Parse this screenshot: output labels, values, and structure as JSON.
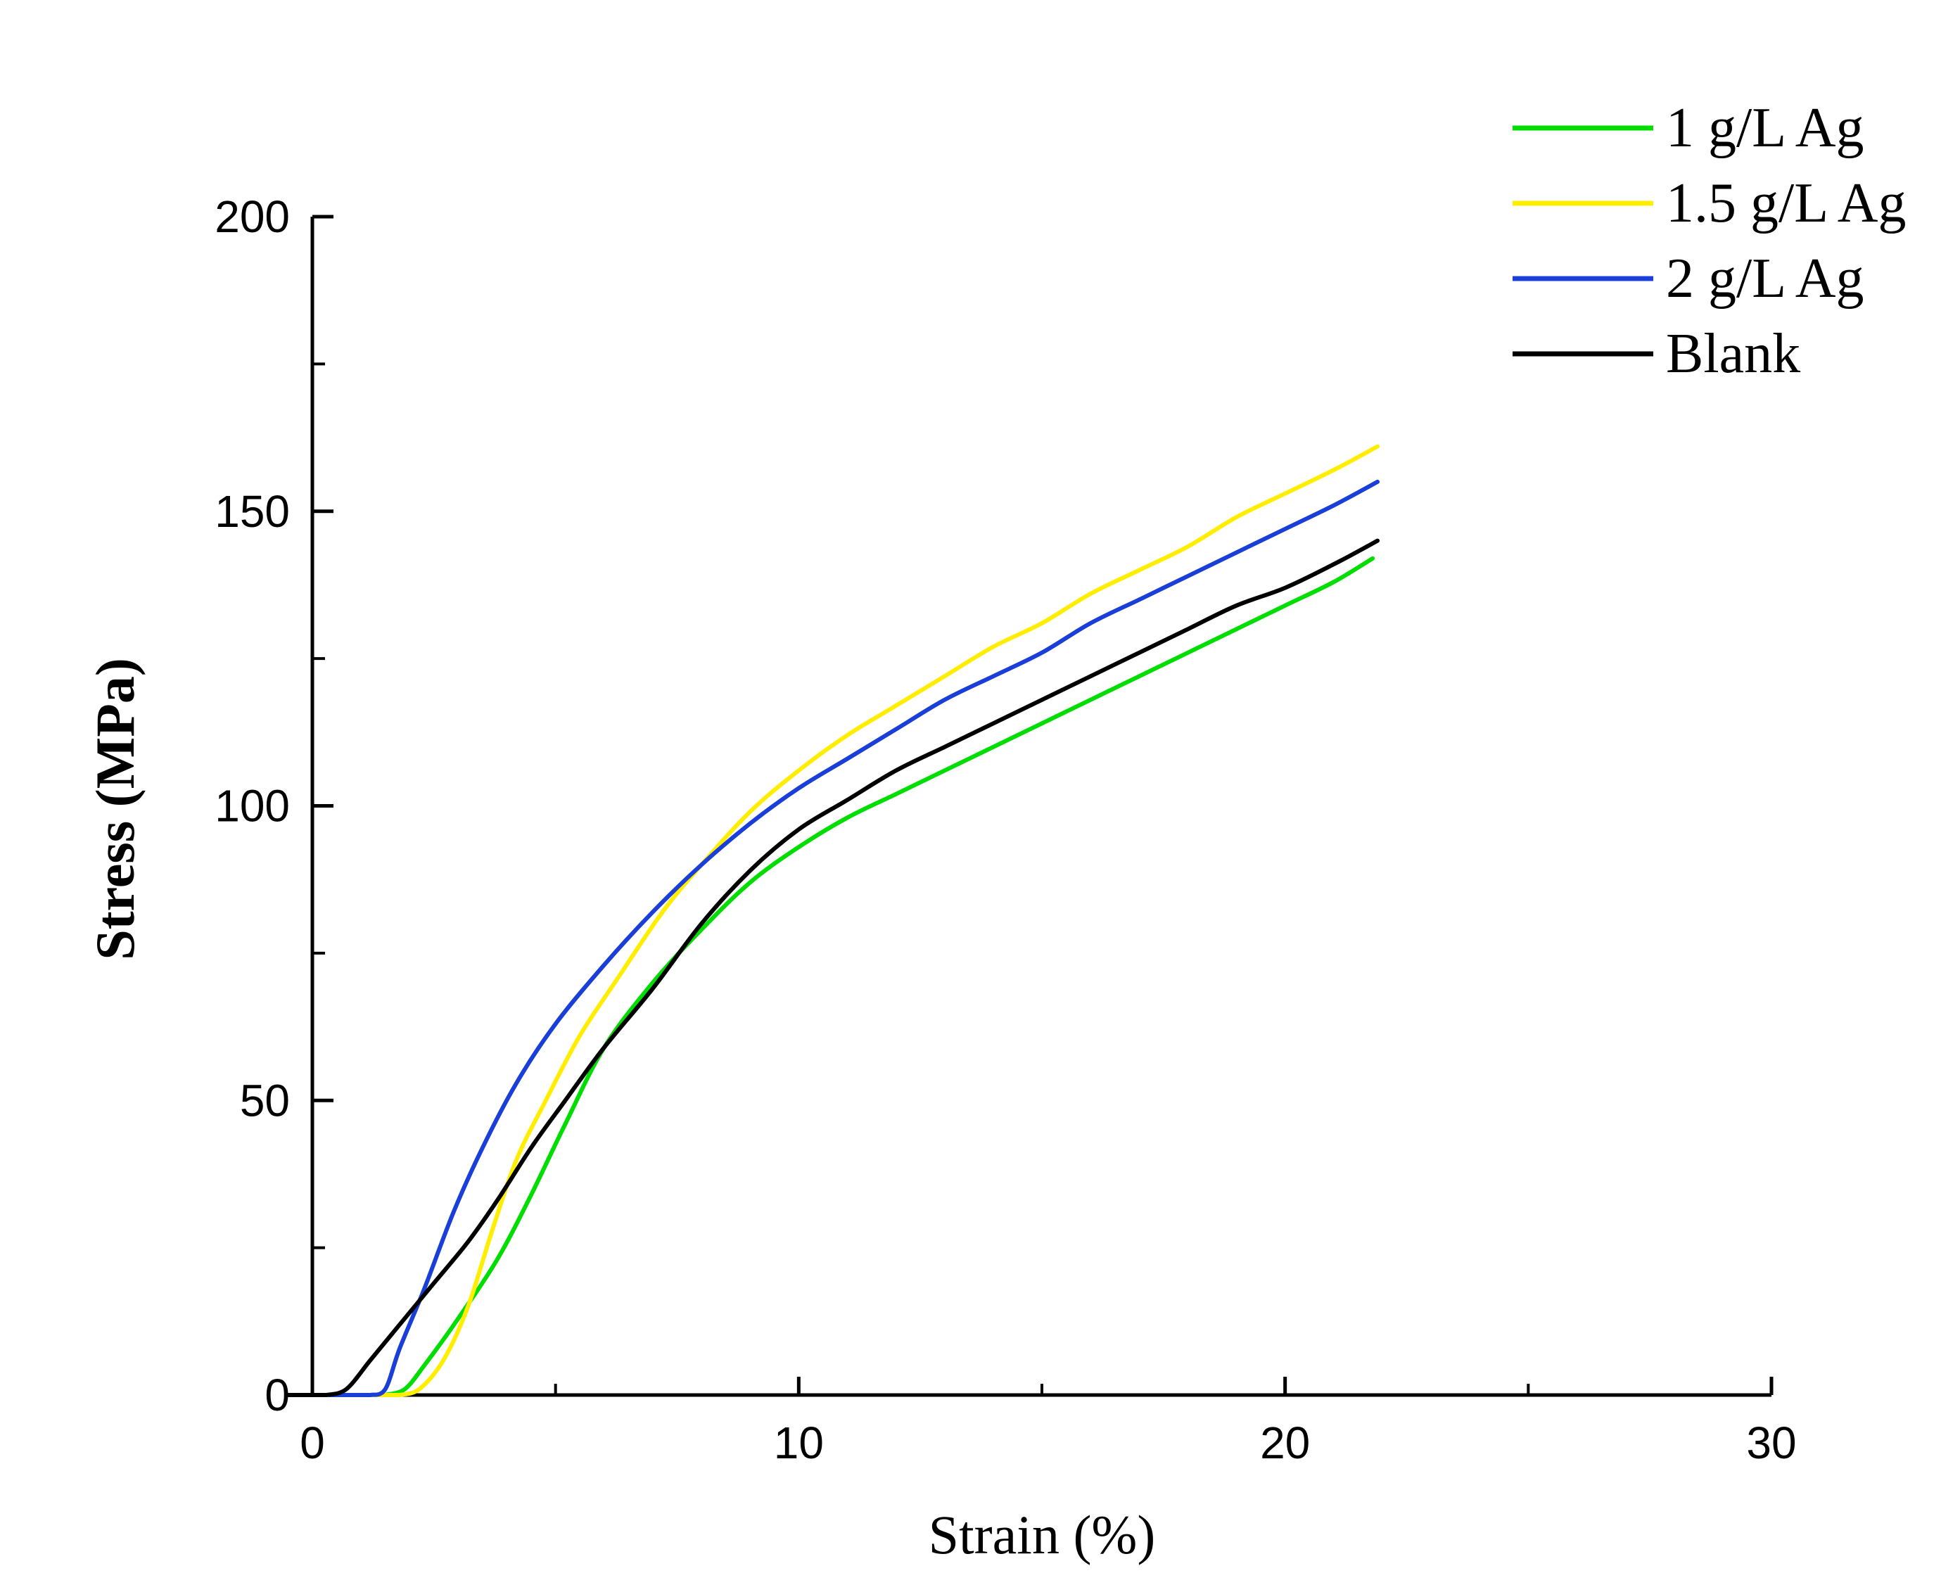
{
  "chart_data": {
    "type": "line",
    "title": "",
    "xlabel": "Strain (%)",
    "ylabel": "Stress (MPa)",
    "xlim": [
      0,
      30
    ],
    "ylim": [
      0,
      200
    ],
    "xticks": [
      0,
      10,
      20,
      30
    ],
    "yticks": [
      0,
      50,
      100,
      150,
      200
    ],
    "x_minor_ticks": [
      5,
      15,
      25
    ],
    "y_minor_ticks": [
      25,
      75,
      125,
      175
    ],
    "legend_position": "top-right",
    "series": [
      {
        "name": "1 g/L Ag",
        "color": "#00dd00",
        "points": [
          [
            1.5,
            0
          ],
          [
            1.9,
            1
          ],
          [
            2.3,
            5
          ],
          [
            3.0,
            13
          ],
          [
            3.8,
            23
          ],
          [
            4.5,
            34
          ],
          [
            5.2,
            46
          ],
          [
            6.0,
            59
          ],
          [
            7.0,
            70
          ],
          [
            8.0,
            79
          ],
          [
            9.0,
            87
          ],
          [
            10.0,
            93
          ],
          [
            11.0,
            98
          ],
          [
            12.0,
            102
          ],
          [
            13.0,
            106
          ],
          [
            14.0,
            110
          ],
          [
            15.0,
            114
          ],
          [
            16.0,
            118
          ],
          [
            17.0,
            122
          ],
          [
            18.0,
            126
          ],
          [
            19.0,
            130
          ],
          [
            20.0,
            134
          ],
          [
            21.0,
            138
          ],
          [
            21.8,
            142
          ]
        ]
      },
      {
        "name": "1.5 g/L Ag",
        "color": "#ffee00",
        "points": [
          [
            1.8,
            0
          ],
          [
            2.2,
            1
          ],
          [
            2.7,
            6
          ],
          [
            3.2,
            15
          ],
          [
            3.7,
            28
          ],
          [
            4.2,
            40
          ],
          [
            4.8,
            50
          ],
          [
            5.5,
            61
          ],
          [
            6.3,
            71
          ],
          [
            7.2,
            82
          ],
          [
            8.0,
            90
          ],
          [
            9.0,
            99
          ],
          [
            10.0,
            106
          ],
          [
            11.0,
            112
          ],
          [
            12.0,
            117
          ],
          [
            13.0,
            122
          ],
          [
            14.0,
            127
          ],
          [
            15.0,
            131
          ],
          [
            16.0,
            136
          ],
          [
            17.0,
            140
          ],
          [
            18.0,
            144
          ],
          [
            19.0,
            149
          ],
          [
            20.0,
            153
          ],
          [
            21.0,
            157
          ],
          [
            21.9,
            161
          ]
        ]
      },
      {
        "name": "2 g/L Ag",
        "color": "#1a3fd9",
        "points": [
          [
            1.2,
            0
          ],
          [
            1.5,
            1
          ],
          [
            1.8,
            8
          ],
          [
            2.3,
            18
          ],
          [
            2.9,
            31
          ],
          [
            3.5,
            42
          ],
          [
            4.2,
            53
          ],
          [
            5.0,
            63
          ],
          [
            6.0,
            73
          ],
          [
            7.0,
            82
          ],
          [
            8.0,
            90
          ],
          [
            9.0,
            97
          ],
          [
            10.0,
            103
          ],
          [
            11.0,
            108
          ],
          [
            12.0,
            113
          ],
          [
            13.0,
            118
          ],
          [
            14.0,
            122
          ],
          [
            15.0,
            126
          ],
          [
            16.0,
            131
          ],
          [
            17.0,
            135
          ],
          [
            18.0,
            139
          ],
          [
            19.0,
            143
          ],
          [
            20.0,
            147
          ],
          [
            21.0,
            151
          ],
          [
            21.9,
            155
          ]
        ]
      },
      {
        "name": "Blank",
        "color": "#000000",
        "points": [
          [
            0.3,
            0
          ],
          [
            0.7,
            1
          ],
          [
            1.2,
            6
          ],
          [
            1.8,
            12
          ],
          [
            2.5,
            19
          ],
          [
            3.2,
            26
          ],
          [
            3.8,
            33
          ],
          [
            4.5,
            42
          ],
          [
            5.2,
            50
          ],
          [
            6.0,
            59
          ],
          [
            7.0,
            69
          ],
          [
            8.0,
            80
          ],
          [
            9.0,
            89
          ],
          [
            10.0,
            96
          ],
          [
            11.0,
            101
          ],
          [
            12.0,
            106
          ],
          [
            13.0,
            110
          ],
          [
            14.0,
            114
          ],
          [
            15.0,
            118
          ],
          [
            16.0,
            122
          ],
          [
            17.0,
            126
          ],
          [
            18.0,
            130
          ],
          [
            19.0,
            134
          ],
          [
            20.0,
            137
          ],
          [
            21.0,
            141
          ],
          [
            21.9,
            145
          ]
        ]
      }
    ]
  }
}
